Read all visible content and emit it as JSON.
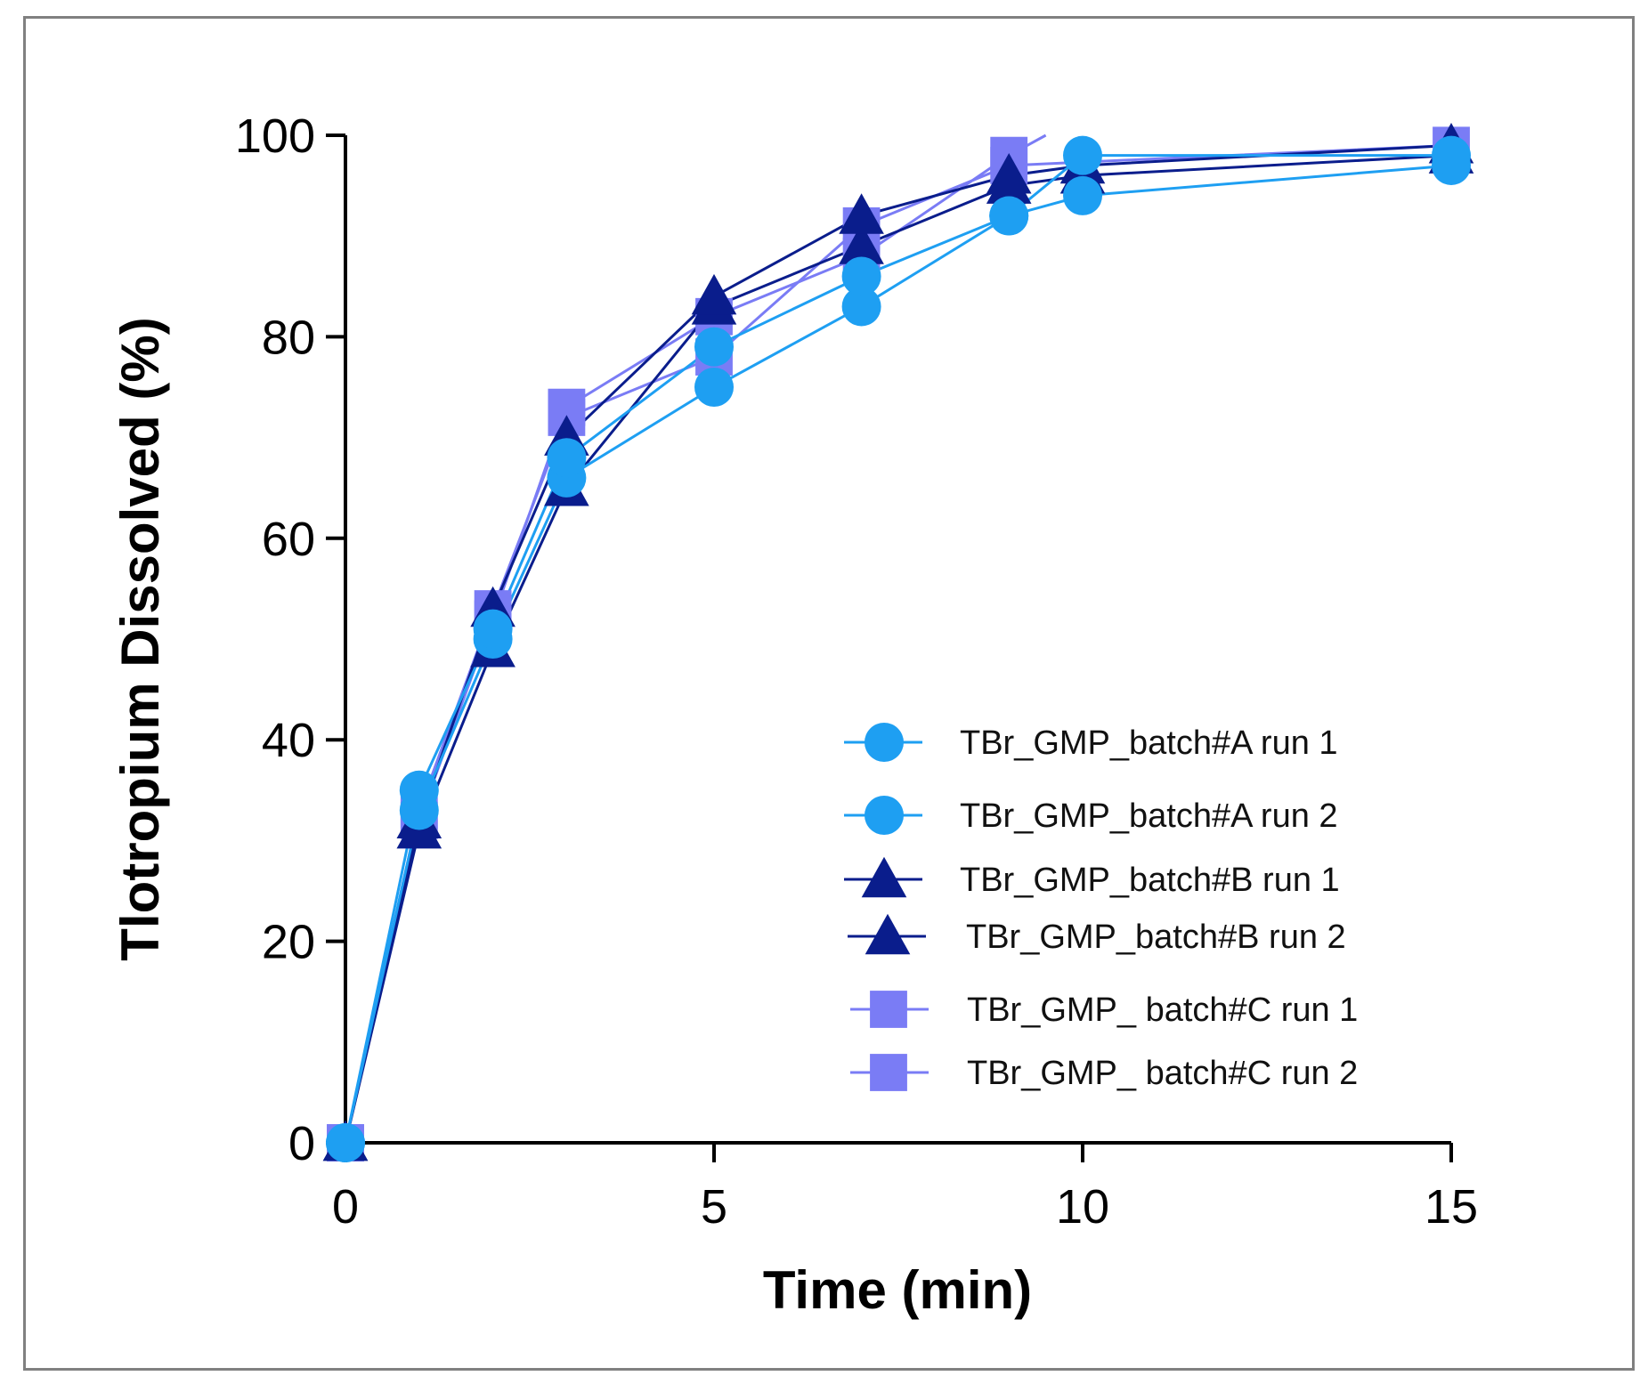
{
  "chart_data": {
    "type": "line",
    "xlabel": "Time (min)",
    "ylabel": "Tlotropium Dissolved  (%)",
    "xlim": [
      0,
      15
    ],
    "ylim": [
      0,
      100
    ],
    "xticks": [
      0,
      5,
      10,
      15
    ],
    "yticks": [
      0,
      20,
      40,
      60,
      80,
      100
    ],
    "legend_position": "bottom-right",
    "series": [
      {
        "name": "TBr_GMP_batch#A run 1",
        "marker": "circle",
        "color": "#1e9ff2",
        "x": [
          0,
          1,
          2,
          3,
          5,
          7,
          9,
          10,
          15
        ],
        "y": [
          0,
          33,
          50,
          66,
          75,
          83,
          92,
          94,
          97
        ]
      },
      {
        "name": "TBr_GMP_batch#A run 2",
        "marker": "circle",
        "color": "#1e9ff2",
        "x": [
          0,
          1,
          2,
          3,
          5,
          7,
          9,
          10,
          15
        ],
        "y": [
          0,
          35,
          51,
          68,
          79,
          86,
          92,
          98,
          98
        ]
      },
      {
        "name": "TBr_GMP_batch#B run 1",
        "marker": "triangle",
        "color": "#0a1d8c",
        "x": [
          0,
          1,
          2,
          3,
          5,
          7,
          9,
          10,
          15
        ],
        "y": [
          0,
          31,
          49,
          65,
          83,
          89,
          95,
          96,
          98
        ]
      },
      {
        "name": "TBr_GMP_batch#B run 2",
        "marker": "triangle",
        "color": "#0a1d8c",
        "x": [
          0,
          1,
          2,
          3,
          5,
          7,
          9,
          10,
          15
        ],
        "y": [
          0,
          32,
          53,
          70,
          84,
          92,
          96,
          97,
          99
        ]
      },
      {
        "name": "TBr_GMP_ batch#C run 1",
        "marker": "square",
        "color": "#7a7cf5",
        "x": [
          0,
          1,
          2,
          3,
          5,
          7,
          9,
          9.5
        ],
        "y": [
          0,
          32,
          52,
          73,
          82,
          88,
          98,
          100
        ]
      },
      {
        "name": "TBr_GMP_ batch#C run 2",
        "marker": "square",
        "color": "#7a7cf5",
        "x": [
          0,
          1,
          2,
          3,
          5,
          7,
          9,
          15
        ],
        "y": [
          0,
          33,
          53,
          72,
          78,
          91,
          97,
          99
        ]
      }
    ]
  }
}
